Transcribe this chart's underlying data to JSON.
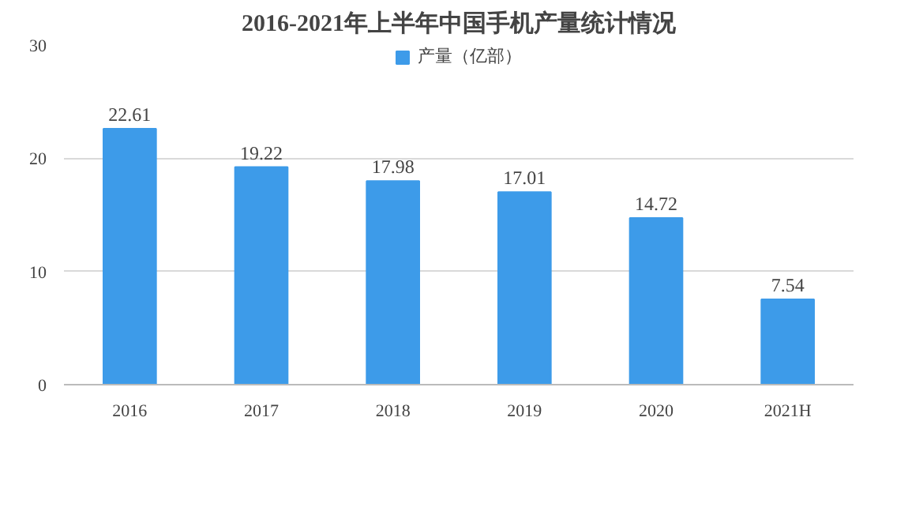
{
  "chart_data": {
    "type": "bar",
    "title": "2016-2021年上半年中国手机产量统计情况",
    "categories": [
      "2016",
      "2017",
      "2018",
      "2019",
      "2020",
      "2021H"
    ],
    "series": [
      {
        "name": "产量（亿部）",
        "color": "#3d9be9",
        "values": [
          22.61,
          19.22,
          17.98,
          17.01,
          14.72,
          7.54
        ]
      }
    ],
    "ylim": [
      0,
      30
    ],
    "yticks": [
      0,
      10,
      20,
      30
    ],
    "grid": "y",
    "legend": "top",
    "data_labels": true
  }
}
